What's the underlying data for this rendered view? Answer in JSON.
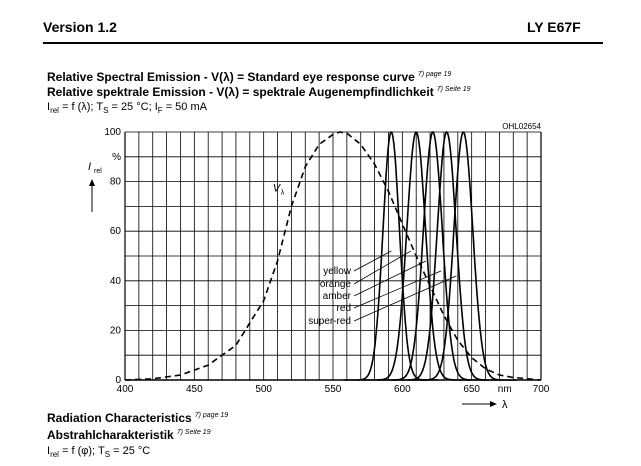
{
  "header": {
    "version": "Version 1.2",
    "part": "LY E67F"
  },
  "title1": {
    "text": "Relative Spectral Emission - V(λ) = Standard eye response curve",
    "ref": "7) page 19"
  },
  "title2": {
    "text": "Relative spektrale Emission - V(λ) = spektrale Augenempfindlichkeit",
    "ref": "7) Seite 19"
  },
  "conditions": {
    "line": "Irel = f (λ); TS = 25 °C; IF = 50 mA",
    "irel": "I",
    "irel_sub": "rel",
    "eq": " = f (λ); T",
    "ts_sub": "S",
    "ts_val": " = 25 °C; I",
    "if_sub": "F",
    "if_val": " = 50 mA"
  },
  "chart_data": {
    "type": "line",
    "code": "OHL02654",
    "xlim": [
      400,
      700
    ],
    "ylim": [
      0,
      100
    ],
    "x_ticks": [
      400,
      450,
      500,
      550,
      600,
      650,
      700
    ],
    "y_ticks": [
      0,
      20,
      40,
      60,
      80,
      100
    ],
    "x_unit": "nm",
    "y_unit": "%",
    "ylabel": "I",
    "ylabel_sub": "rel",
    "xlabel": "λ",
    "vlambda_label": "V",
    "vlambda_sub": "λ",
    "grid": true,
    "series": [
      {
        "name": "Vλ",
        "style": "dashed",
        "x": [
          400,
          420,
          440,
          460,
          480,
          500,
          510,
          520,
          530,
          540,
          550,
          555,
          560,
          570,
          580,
          590,
          600,
          610,
          620,
          630,
          640,
          650,
          660,
          670,
          680,
          690,
          700
        ],
        "y": [
          0,
          0.5,
          2,
          6,
          14,
          32,
          48,
          70,
          86,
          95,
          99,
          100,
          99.5,
          95,
          87,
          76,
          63,
          50,
          38,
          26,
          16,
          9,
          4.5,
          2,
          1,
          0.5,
          0
        ]
      },
      {
        "name": "super-red",
        "style": "solid",
        "peak": 644,
        "fwhm": 16,
        "y_peak": 100
      },
      {
        "name": "red",
        "style": "solid",
        "peak": 632,
        "fwhm": 16,
        "y_peak": 100
      },
      {
        "name": "amber",
        "style": "solid",
        "peak": 622,
        "fwhm": 16,
        "y_peak": 100
      },
      {
        "name": "orange",
        "style": "solid",
        "peak": 610,
        "fwhm": 16,
        "y_peak": 100
      },
      {
        "name": "yellow",
        "style": "solid",
        "peak": 592,
        "fwhm": 14,
        "y_peak": 100
      }
    ],
    "annotations": [
      "yellow",
      "orange",
      "amber",
      "red",
      "super-red"
    ]
  },
  "section2": {
    "title1": {
      "text": "Radiation Characteristics",
      "ref": "7) page 19"
    },
    "title2": {
      "text": "Abstrahlcharakteristik",
      "ref": "7) Seite 19"
    },
    "cond_irel": "I",
    "cond_irel_sub": "rel",
    "cond_eq": " = f (φ); T",
    "cond_ts_sub": "S",
    "cond_ts_val": " = 25 °C"
  }
}
